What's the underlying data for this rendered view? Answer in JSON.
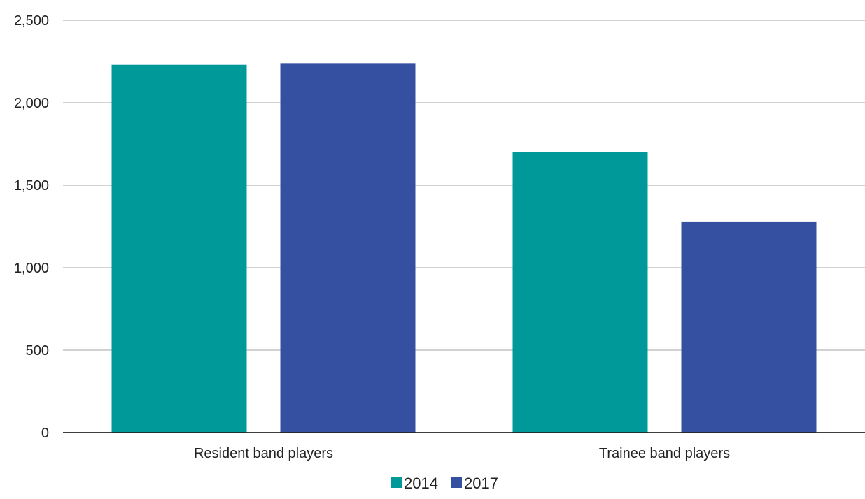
{
  "chart_data": {
    "type": "bar",
    "categories": [
      "Resident band players",
      "Trainee band players"
    ],
    "series": [
      {
        "name": "2014",
        "values": [
          2230,
          1700
        ],
        "color": "#009999"
      },
      {
        "name": "2017",
        "values": [
          2240,
          1280
        ],
        "color": "#354fa1"
      }
    ],
    "ylim": [
      0,
      2500
    ],
    "yticks": [
      0,
      500,
      1000,
      1500,
      2000,
      2500
    ],
    "ytick_labels": [
      "0",
      "500",
      "1,000",
      "1,500",
      "2,000",
      "2,500"
    ],
    "grid": true,
    "legend_position": "bottom-center",
    "title": "",
    "xlabel": "",
    "ylabel": ""
  }
}
